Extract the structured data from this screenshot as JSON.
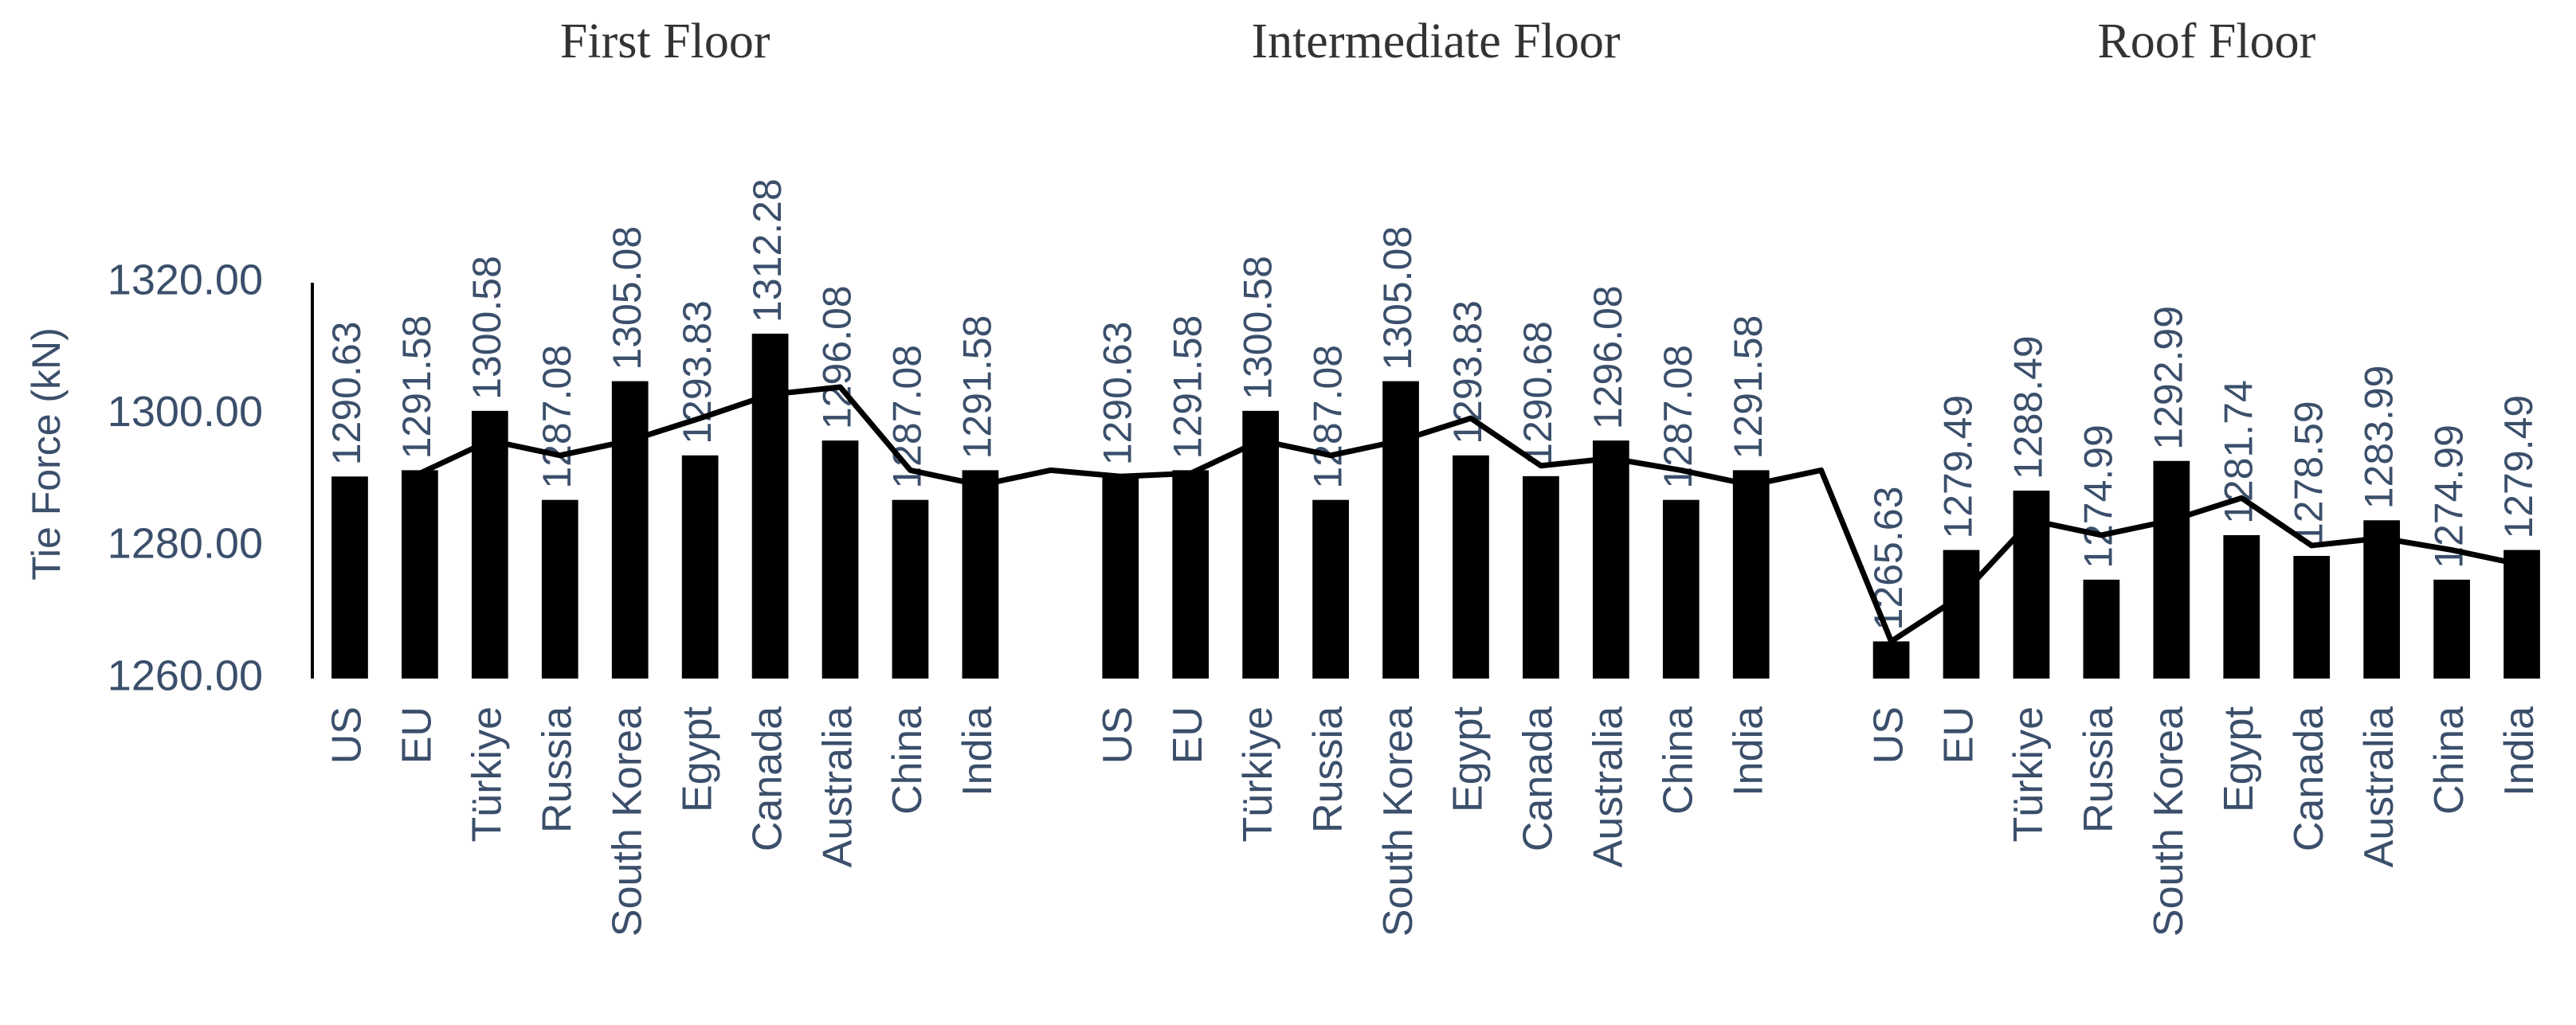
{
  "chart_data": {
    "type": "bar",
    "groups": [
      "First Floor",
      "Intermediate Floor",
      "Roof Floor"
    ],
    "y_label": "Tie Force (kN)",
    "categories": [
      "US",
      "EU",
      "Türkiye",
      "Russia",
      "South Korea",
      "Egypt",
      "Canada",
      "Australia",
      "China",
      "India",
      null,
      "US",
      "EU",
      "Türkiye",
      "Russia",
      "South Korea",
      "Egypt",
      "Canada",
      "Australia",
      "China",
      "India",
      null,
      "US",
      "EU",
      "Türkiye",
      "Russia",
      "South Korea",
      "Egypt",
      "Canada",
      "Australia",
      "China",
      "India"
    ],
    "series": [
      {
        "type": "bar",
        "color": "#000000",
        "values": [
          1290.63,
          1291.58,
          1300.58,
          1287.08,
          1305.08,
          1293.83,
          1312.28,
          1296.08,
          1287.08,
          1291.58,
          null,
          1290.63,
          1291.58,
          1300.58,
          1287.08,
          1305.08,
          1293.83,
          1290.68,
          1296.08,
          1287.08,
          1291.58,
          null,
          1265.63,
          1279.49,
          1288.49,
          1274.99,
          1292.99,
          1281.74,
          1278.59,
          1283.99,
          1274.99,
          1279.49
        ]
      },
      {
        "type": "line",
        "color": "#000000",
        "values": [
          null,
          1291.1,
          1296.08,
          1293.83,
          1296.08,
          1299.46,
          1303.06,
          1304.18,
          1291.58,
          1289.33,
          1291.58,
          1290.63,
          1291.1,
          1296.08,
          1293.83,
          1296.08,
          1299.46,
          1292.26,
          1293.38,
          1291.58,
          1289.33,
          1291.58,
          1265.63,
          1272.56,
          1283.99,
          1281.74,
          1283.99,
          1287.37,
          1280.17,
          1281.29,
          1279.49,
          1277.24
        ]
      }
    ],
    "ylim": [
      1260,
      1320
    ],
    "yticks": [
      {
        "value": 1260,
        "label": "1260.00"
      },
      {
        "value": 1280,
        "label": "1280.00"
      },
      {
        "value": 1300,
        "label": "1300.00"
      },
      {
        "value": 1320,
        "label": "1320.00"
      }
    ]
  }
}
